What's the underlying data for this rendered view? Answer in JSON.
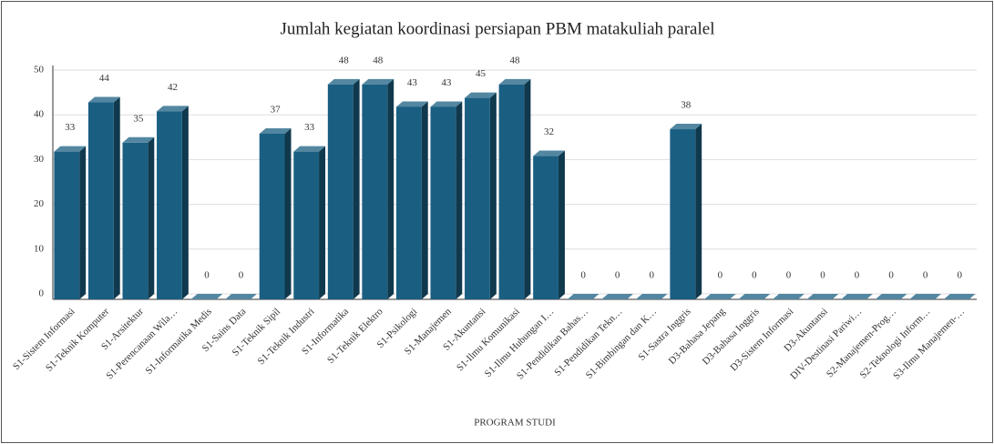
{
  "chart_data": {
    "type": "bar3d",
    "title": "Jumlah kegiatan koordinasi persiapan PBM matakuliah paralel",
    "x_label": "PROGRAM STUDI",
    "categories": [
      "S1-Sistem Informasi",
      "S1-Teknik Komputer",
      "S1-Arsitektur",
      "S1-Perencanaan Wila…",
      "S1-Informatika Medis",
      "S1-Sains Data",
      "S1-Teknik Sipil",
      "S1-Teknik Industri",
      "S1-Informatika",
      "S1-Teknik Elektro",
      "S1-Psikologi",
      "S1-Manajemen",
      "S1-Akuntansi",
      "S1-Ilmu Komunikasi",
      "S1-Ilmu Hubungan I…",
      "S1-Pendidikan Bahas…",
      "S1-Pendidikan Tekn…",
      "S1-Bimbingan dan K…",
      "S1-Sastra Inggris",
      "D3-Bahasa Jepang",
      "D3-Bahasa Inggris",
      "D3-Sistem Informasi",
      "D3-Akuntansi",
      "DIV-Destinasi Pariwi…",
      "S2-Manajemen-Prog…",
      "S2-Teknologi Inform…",
      "S3-Ilmu Manajemen-…"
    ],
    "values": [
      33,
      44,
      35,
      42,
      0,
      0,
      37,
      33,
      48,
      48,
      43,
      43,
      45,
      48,
      32,
      0,
      0,
      0,
      38,
      0,
      0,
      0,
      0,
      0,
      0,
      0,
      0
    ],
    "color": "#1a5f82",
    "ylim": [
      0,
      50
    ],
    "yticks": [
      0,
      10,
      20,
      30,
      40,
      50
    ],
    "grid": true
  }
}
